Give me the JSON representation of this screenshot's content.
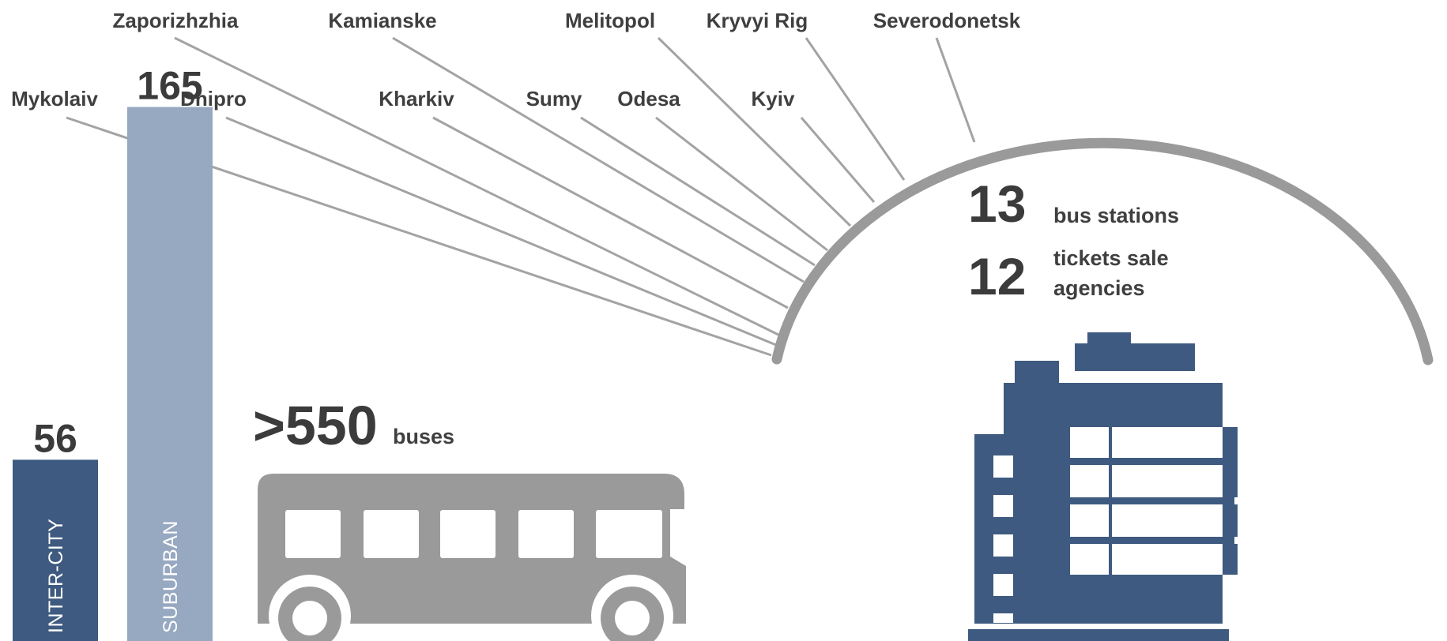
{
  "cities": [
    {
      "name": "Zaporizhzhia"
    },
    {
      "name": "Kamianske"
    },
    {
      "name": "Melitopol"
    },
    {
      "name": "Kryvyi Rig"
    },
    {
      "name": "Severodonetsk"
    },
    {
      "name": "Mykolaiv"
    },
    {
      "name": "Dnipro"
    },
    {
      "name": "Kharkiv"
    },
    {
      "name": "Sumy"
    },
    {
      "name": "Odesa"
    },
    {
      "name": "Kyiv"
    }
  ],
  "stations": {
    "count_stations": "13",
    "label_stations": "bus stations",
    "count_agencies": "12",
    "label_agencies_line1": "tickets sale",
    "label_agencies_line2": "agencies"
  },
  "buses": {
    "count": ">550",
    "label": "buses"
  },
  "routes": [
    {
      "value": "56",
      "label": "INTER-CITY"
    },
    {
      "value": "165",
      "label": "SUBURBAN"
    }
  ],
  "chart_data": {
    "type": "bar",
    "categories": [
      "INTER-CITY",
      "SUBURBAN"
    ],
    "values": [
      56,
      165
    ]
  },
  "colors": {
    "dark_blue": "#3e5a80",
    "light_blue": "#97a8c1",
    "gray": "#9a9a9a",
    "text": "#3f3f3f"
  }
}
